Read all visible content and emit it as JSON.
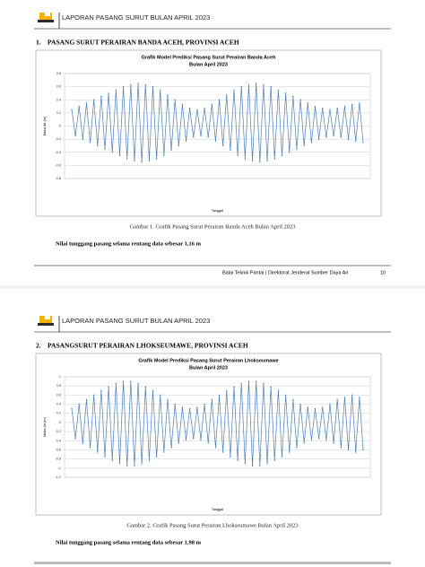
{
  "pages": [
    {
      "header": "LAPORAN PASANG SURUT BULAN APRIL 2023",
      "section": {
        "number": "1.",
        "title": "PASANG SURUT PERAIRAN BANDA ACEH, PROVINSI ACEH"
      },
      "chart": {
        "type": "line",
        "title": [
          "Grafik Model Prediksi Pasang Surut Perairan Banda Aceh",
          "Bulan April 2023"
        ],
        "ylabel": "Muka Air (m)",
        "xlabel": "Tanggal",
        "color": "#4a7ebb",
        "grid": true,
        "ylim": [
          -0.8,
          0.8
        ],
        "yticks": [
          -0.8,
          -0.6,
          -0.4,
          -0.2,
          0,
          0.2,
          0.4,
          0.6,
          0.8
        ],
        "values": [
          0.25,
          -0.15,
          0.3,
          -0.2,
          0.35,
          -0.25,
          0.4,
          -0.3,
          0.45,
          -0.35,
          0.5,
          -0.4,
          0.55,
          -0.45,
          0.6,
          -0.5,
          0.63,
          -0.53,
          0.65,
          -0.55,
          0.63,
          -0.53,
          0.6,
          -0.5,
          0.55,
          -0.45,
          0.47,
          -0.37,
          0.4,
          -0.3,
          0.33,
          -0.23,
          0.27,
          -0.17,
          0.25,
          -0.15,
          0.27,
          -0.17,
          0.33,
          -0.23,
          0.4,
          -0.3,
          0.47,
          -0.37,
          0.55,
          -0.45,
          0.6,
          -0.5,
          0.63,
          -0.53,
          0.65,
          -0.55,
          0.63,
          -0.53,
          0.6,
          -0.5,
          0.55,
          -0.45,
          0.5,
          -0.4,
          0.45,
          -0.35,
          0.4,
          -0.3,
          0.35,
          -0.25,
          0.3,
          -0.2,
          0.27,
          -0.17,
          0.25,
          -0.15,
          0.27,
          -0.17,
          0.3,
          -0.2,
          0.33,
          -0.23,
          0.35,
          -0.25
        ]
      },
      "caption": "Gambar 1. Grafik Pasang Surut Perairan Banda Aceh Bulan April 2023",
      "note": "Nilai tunggang pasang selama rentang data sebesar 1,16 m",
      "footer": "Balai Teknik Pantai | Direktorat Jenderal Sumber Daya Air",
      "page_number": "10"
    },
    {
      "header": "LAPORAN PASANG SURUT BULAN APRIL 2023",
      "section": {
        "number": "2.",
        "title": "PASANGSURUT PERAIRAN LHOKSEUMAWE, PROVINSI ACEH"
      },
      "chart": {
        "type": "line",
        "title": [
          "Grafik Model Prediksi Pasang Surut Perairan Lhokseumawe",
          "Bulan April 2023"
        ],
        "ylabel": "Muka Air (m)",
        "xlabel": "Tanggal",
        "color": "#4a7ebb",
        "grid": true,
        "ylim": [
          -1.2,
          1
        ],
        "yticks": [
          -1.2,
          -1,
          -0.8,
          -0.6,
          -0.4,
          -0.2,
          0,
          0.2,
          0.4,
          0.6,
          0.8,
          1
        ],
        "values": [
          0.3,
          -0.35,
          0.4,
          -0.45,
          0.5,
          -0.55,
          0.6,
          -0.65,
          0.7,
          -0.75,
          0.78,
          -0.83,
          0.85,
          -0.9,
          0.9,
          -0.95,
          0.9,
          -0.95,
          0.85,
          -0.9,
          0.78,
          -0.83,
          0.7,
          -0.75,
          0.6,
          -0.65,
          0.5,
          -0.55,
          0.4,
          -0.45,
          0.33,
          -0.38,
          0.3,
          -0.35,
          0.33,
          -0.38,
          0.4,
          -0.45,
          0.5,
          -0.55,
          0.6,
          -0.65,
          0.7,
          -0.75,
          0.78,
          -0.83,
          0.85,
          -0.9,
          0.9,
          -0.95,
          0.9,
          -0.95,
          0.85,
          -0.9,
          0.78,
          -0.83,
          0.7,
          -0.75,
          0.6,
          -0.65,
          0.5,
          -0.55,
          0.4,
          -0.45,
          0.33,
          -0.38,
          0.3,
          -0.35,
          0.33,
          -0.38,
          0.4,
          -0.45,
          0.5,
          -0.55,
          0.55,
          -0.6,
          0.6,
          -0.65,
          0.55,
          -0.6
        ]
      },
      "caption": "Gambar 2. Grafik Pasang Surut Perairan Lhokseumawe Bulan April 2023",
      "note": "Nilai tunggang pasang selama rentang data sebesar 1,98 m"
    }
  ]
}
